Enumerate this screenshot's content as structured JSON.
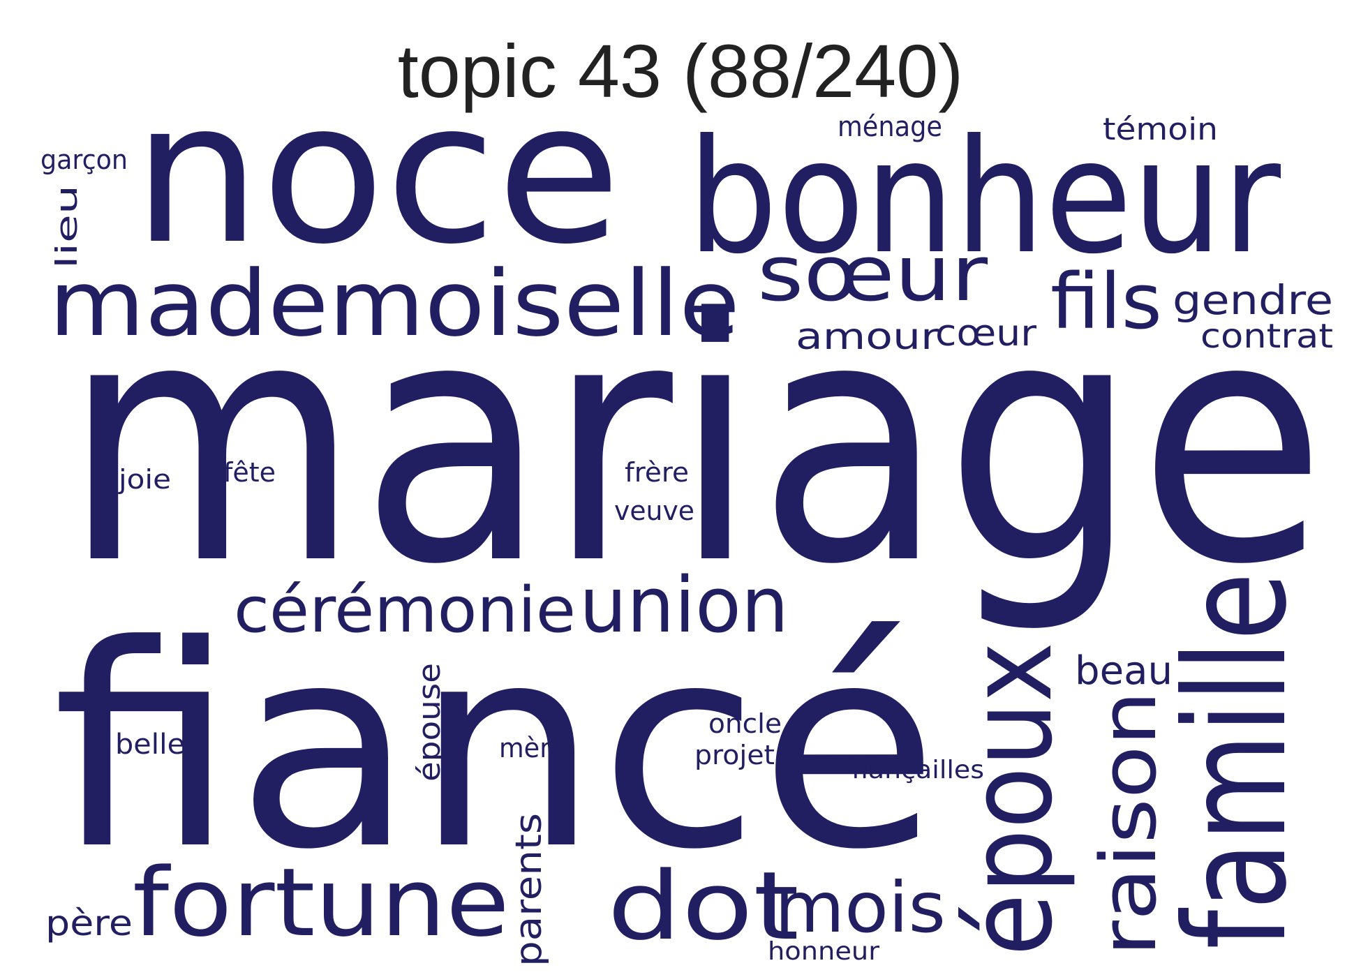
{
  "title": "topic 43 (88/240)",
  "word_color": "#211e62",
  "title_color": "#222222",
  "words": [
    {
      "text": "mariage",
      "weight": 100,
      "rotated": false
    },
    {
      "text": "fiancé",
      "weight": 92,
      "rotated": false
    },
    {
      "text": "noce",
      "weight": 62,
      "rotated": false
    },
    {
      "text": "bonheur",
      "weight": 50,
      "rotated": false
    },
    {
      "text": "famille",
      "weight": 44,
      "rotated": true
    },
    {
      "text": "époux",
      "weight": 38,
      "rotated": true
    },
    {
      "text": "mademoiselle",
      "weight": 30,
      "rotated": false
    },
    {
      "text": "fortune",
      "weight": 30,
      "rotated": false
    },
    {
      "text": "dot",
      "weight": 30,
      "rotated": false
    },
    {
      "text": "raison",
      "weight": 28,
      "rotated": true
    },
    {
      "text": "sœur",
      "weight": 22,
      "rotated": false
    },
    {
      "text": "fils",
      "weight": 22,
      "rotated": false
    },
    {
      "text": "union",
      "weight": 22,
      "rotated": false
    },
    {
      "text": "mois",
      "weight": 21,
      "rotated": false
    },
    {
      "text": "cérémonie",
      "weight": 19,
      "rotated": false
    },
    {
      "text": "parents",
      "weight": 10,
      "rotated": true
    },
    {
      "text": "épouse",
      "weight": 9,
      "rotated": true
    },
    {
      "text": "gendre",
      "weight": 9,
      "rotated": false
    },
    {
      "text": "beau",
      "weight": 9,
      "rotated": false
    },
    {
      "text": "amour",
      "weight": 8,
      "rotated": false
    },
    {
      "text": "cœur",
      "weight": 8,
      "rotated": false
    },
    {
      "text": "contrat",
      "weight": 8,
      "rotated": false
    },
    {
      "text": "père",
      "weight": 8,
      "rotated": false
    },
    {
      "text": "lieu",
      "weight": 7,
      "rotated": true
    },
    {
      "text": "témoin",
      "weight": 7,
      "rotated": false
    },
    {
      "text": "ménage",
      "weight": 6,
      "rotated": false
    },
    {
      "text": "garçon",
      "weight": 6,
      "rotated": false
    },
    {
      "text": "joie",
      "weight": 6,
      "rotated": false
    },
    {
      "text": "fête",
      "weight": 6,
      "rotated": false
    },
    {
      "text": "frère",
      "weight": 6,
      "rotated": false
    },
    {
      "text": "veuve",
      "weight": 6,
      "rotated": false
    },
    {
      "text": "belle",
      "weight": 6,
      "rotated": false
    },
    {
      "text": "mère",
      "weight": 6,
      "rotated": false
    },
    {
      "text": "oncle",
      "weight": 6,
      "rotated": false
    },
    {
      "text": "projet",
      "weight": 6,
      "rotated": false
    },
    {
      "text": "fiançailles",
      "weight": 6,
      "rotated": false
    },
    {
      "text": "honneur",
      "weight": 6,
      "rotated": false
    }
  ]
}
